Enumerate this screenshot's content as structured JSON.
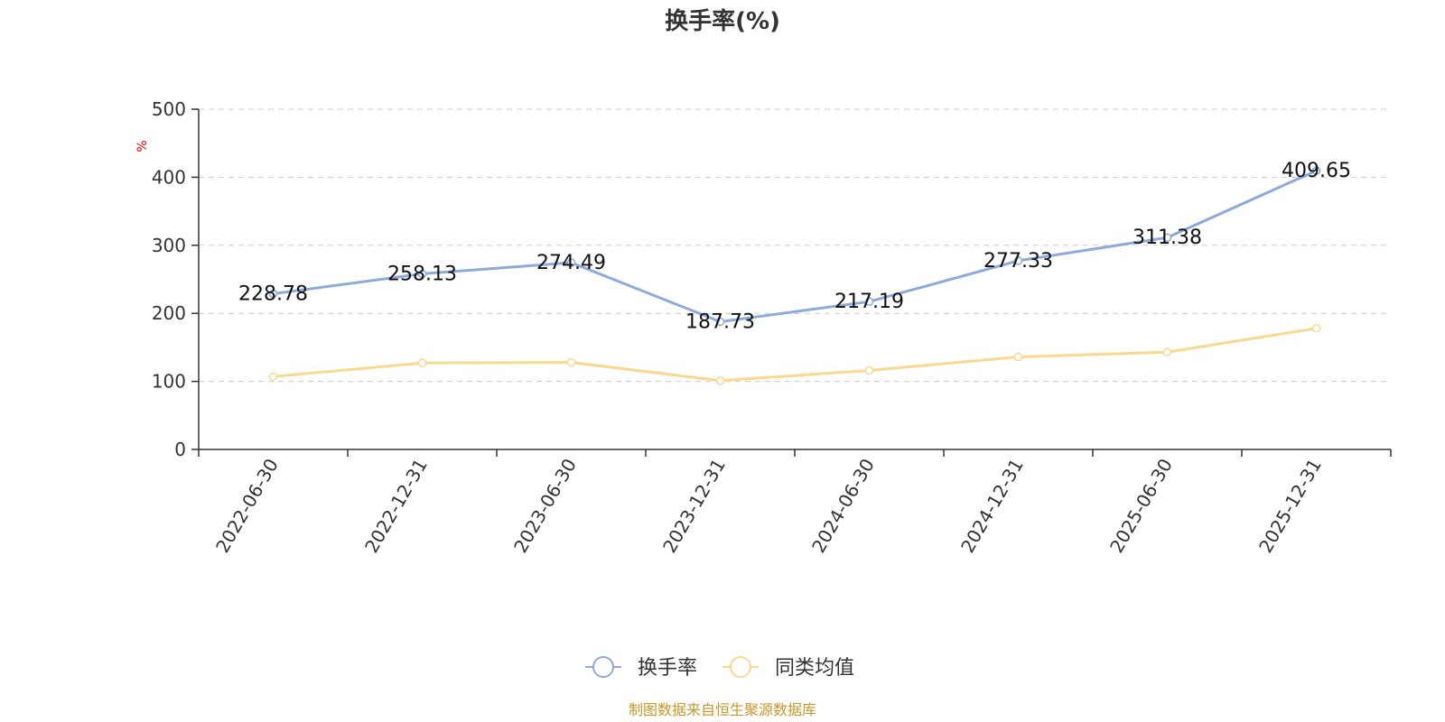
{
  "chart_data": {
    "type": "line",
    "title": "换手率(%)",
    "ylabel": "%",
    "ylim": [
      0,
      500
    ],
    "yticks": [
      0,
      100,
      200,
      300,
      400,
      500
    ],
    "x": [
      "2022-06-30",
      "2022-12-31",
      "2023-06-30",
      "2023-12-31",
      "2024-06-30",
      "2024-12-31",
      "2025-06-30",
      "2025-12-31"
    ],
    "series": [
      {
        "name": "换手率",
        "color": "#8eaad8",
        "values": [
          228.78,
          258.13,
          274.49,
          187.73,
          217.19,
          277.33,
          311.38,
          409.65
        ],
        "labels": [
          "228.78",
          "258.13",
          "274.49",
          "187.73",
          "217.19",
          "277.33",
          "311.38",
          "409.65"
        ]
      },
      {
        "name": "同类均值",
        "color": "#fbd88f",
        "values": [
          107,
          127,
          128,
          101,
          116,
          136,
          143,
          178
        ]
      }
    ],
    "grid": true,
    "legend_position": "bottom-center"
  },
  "footer": {
    "source": "制图数据来自恒生聚源数据库"
  }
}
